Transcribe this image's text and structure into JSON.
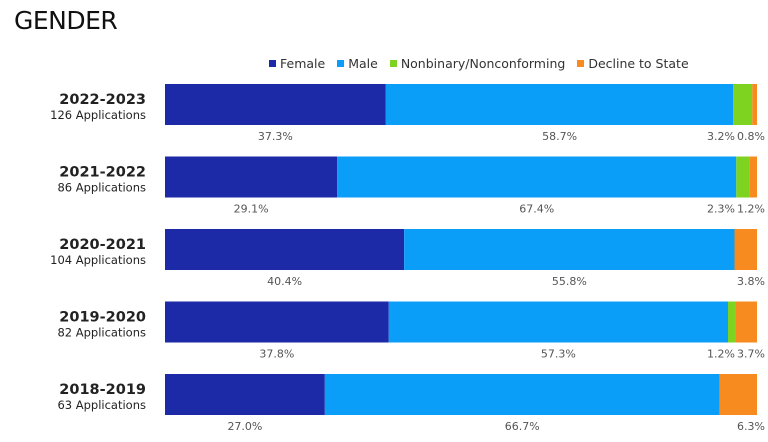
{
  "title": "GENDER",
  "colors": {
    "Female": "#1c2aa7",
    "Male": "#0b9ef8",
    "Nonbinary/Nonconforming": "#7ed321",
    "Decline to State": "#f78b1f"
  },
  "chart_data": {
    "type": "bar",
    "orientation": "horizontal",
    "stacked": true,
    "normalized": true,
    "legend_position": "top",
    "legend": [
      "Female",
      "Male",
      "Nonbinary/Nonconforming",
      "Decline to State"
    ],
    "categories": [
      {
        "year": "2022-2023",
        "count": "126 Applications"
      },
      {
        "year": "2021-2022",
        "count": "86 Applications"
      },
      {
        "year": "2020-2021",
        "count": "104 Applications"
      },
      {
        "year": "2019-2020",
        "count": "82 Applications"
      },
      {
        "year": "2018-2019",
        "count": "63 Applications"
      }
    ],
    "series": [
      {
        "name": "Female",
        "values": [
          37.3,
          29.1,
          40.4,
          37.8,
          27.0
        ],
        "labels": [
          "37.3%",
          "29.1%",
          "40.4%",
          "37.8%",
          "27.0%"
        ]
      },
      {
        "name": "Male",
        "values": [
          58.7,
          67.4,
          55.8,
          57.3,
          66.7
        ],
        "labels": [
          "58.7%",
          "67.4%",
          "55.8%",
          "57.3%",
          "66.7%"
        ]
      },
      {
        "name": "Nonbinary/Nonconforming",
        "values": [
          3.2,
          2.3,
          0,
          1.2,
          0
        ],
        "labels": [
          "3.2%",
          "2.3%",
          "",
          "1.2%",
          ""
        ]
      },
      {
        "name": "Decline to State",
        "values": [
          0.8,
          1.2,
          3.8,
          3.7,
          6.3
        ],
        "labels": [
          "0.8%",
          "1.2%",
          "3.8%",
          "3.7%",
          "6.3%"
        ]
      }
    ]
  }
}
